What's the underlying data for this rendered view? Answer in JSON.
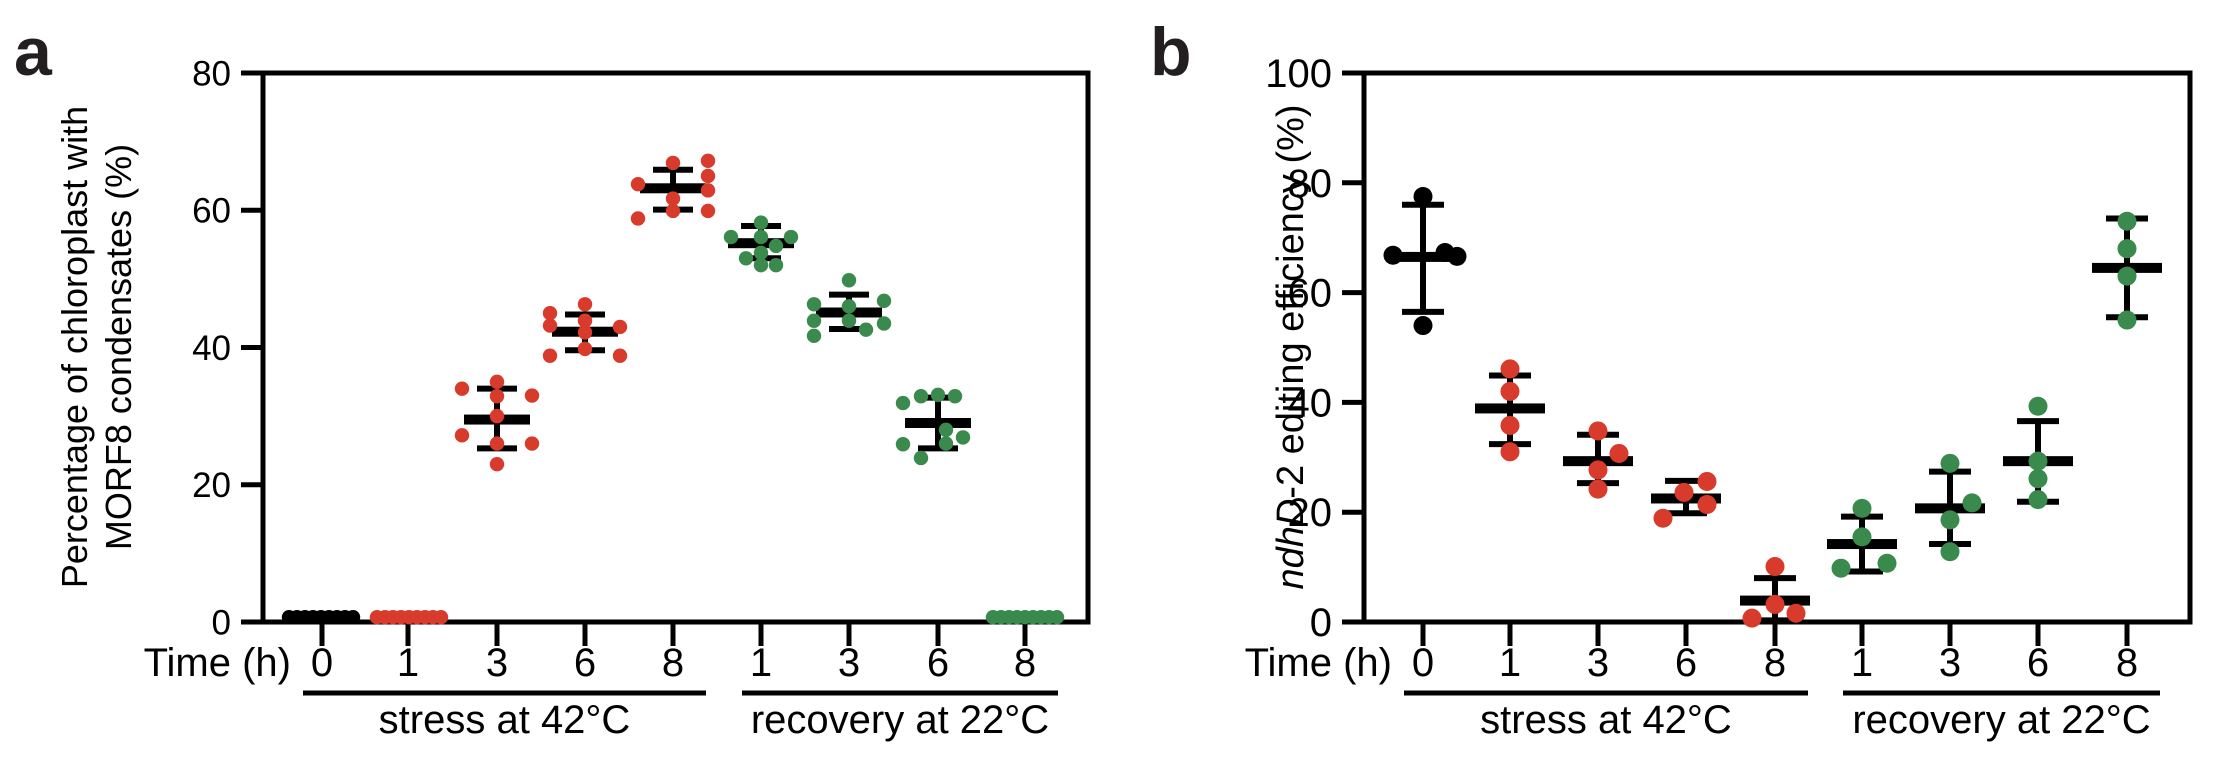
{
  "figure_colors": {
    "stress": "#d83a2b",
    "recovery": "#3a8a4d",
    "baseline": "#000000",
    "axis": "#000000"
  },
  "chart_data": [
    {
      "type": "scatter",
      "panel_label": "a",
      "title": "",
      "ylabel_lines": [
        "Percentage of chloroplast with",
        "MORF8 condensates (%)"
      ],
      "xlabel": "Time (h)",
      "ylim": [
        0,
        80
      ],
      "yticks": [
        0,
        20,
        40,
        60,
        80
      ],
      "grid": false,
      "categories": [
        "0",
        "1",
        "3",
        "6",
        "8",
        "1",
        "3",
        "6",
        "8"
      ],
      "groups": [
        {
          "label": "stress at 42°C",
          "from_index": 0,
          "to_index": 4
        },
        {
          "label": "recovery at 22°C",
          "from_index": 5,
          "to_index": 8
        }
      ],
      "series_colors": {
        "baseline": "#000000",
        "stress": "#d83a2b",
        "recovery": "#3a8a4d"
      },
      "clusters": [
        {
          "time": "0",
          "series": "baseline",
          "mean": 0.7,
          "sd": null,
          "points": [
            [
              0.7,
              -33
            ],
            [
              0.7,
              -25
            ],
            [
              0.7,
              -17
            ],
            [
              0.7,
              -9
            ],
            [
              0.7,
              -1
            ],
            [
              0.7,
              7
            ],
            [
              0.7,
              15
            ],
            [
              0.7,
              23
            ],
            [
              0.7,
              31
            ]
          ]
        },
        {
          "time": "1",
          "series": "stress",
          "mean": 0.7,
          "sd": null,
          "points": [
            [
              0.7,
              -31
            ],
            [
              0.7,
              -23
            ],
            [
              0.7,
              -15
            ],
            [
              0.7,
              -7
            ],
            [
              0.7,
              1
            ],
            [
              0.7,
              9
            ],
            [
              0.7,
              17
            ],
            [
              0.7,
              25
            ],
            [
              0.7,
              33
            ]
          ]
        },
        {
          "time": "3",
          "series": "stress",
          "mean": 29.5,
          "sd": [
            25.3,
            34.0
          ],
          "points": [
            [
              35,
              0
            ],
            [
              34,
              -35
            ],
            [
              33,
              35
            ],
            [
              32.9,
              0
            ],
            [
              30,
              0
            ],
            [
              27.2,
              -35
            ],
            [
              26,
              0
            ],
            [
              26,
              35
            ],
            [
              23,
              0
            ]
          ]
        },
        {
          "time": "6",
          "series": "stress",
          "mean": 42.3,
          "sd": [
            39.6,
            44.8
          ],
          "points": [
            [
              46.3,
              0
            ],
            [
              45,
              -35
            ],
            [
              43.9,
              0
            ],
            [
              43.2,
              -35
            ],
            [
              43,
              35
            ],
            [
              42.2,
              0
            ],
            [
              39.8,
              0
            ],
            [
              38.8,
              -35
            ],
            [
              38.8,
              35
            ]
          ]
        },
        {
          "time": "8",
          "series": "stress",
          "mean": 63.2,
          "sd": [
            60.1,
            65.9
          ],
          "points": [
            [
              67.2,
              35
            ],
            [
              66.9,
              0
            ],
            [
              65,
              35
            ],
            [
              63.8,
              -35
            ],
            [
              62.9,
              35
            ],
            [
              61.7,
              0
            ],
            [
              59.9,
              0
            ],
            [
              59.9,
              35
            ],
            [
              58.8,
              -35
            ]
          ]
        },
        {
          "time": "1",
          "series": "recovery",
          "mean": 55.2,
          "sd": [
            53.0,
            57.7
          ],
          "points": [
            [
              58.2,
              0
            ],
            [
              56.1,
              -30
            ],
            [
              56.1,
              0
            ],
            [
              56.1,
              30
            ],
            [
              54.8,
              15
            ],
            [
              53.8,
              0
            ],
            [
              53,
              -15
            ],
            [
              52,
              0
            ],
            [
              52,
              15
            ]
          ]
        },
        {
          "time": "3",
          "series": "recovery",
          "mean": 45.1,
          "sd": [
            42.7,
            47.7
          ],
          "points": [
            [
              49.8,
              0
            ],
            [
              46.8,
              35
            ],
            [
              46.3,
              -35
            ],
            [
              46,
              0
            ],
            [
              43.9,
              -35
            ],
            [
              43.9,
              0
            ],
            [
              43.5,
              35
            ],
            [
              42.6,
              17
            ],
            [
              41.7,
              -35
            ]
          ]
        },
        {
          "time": "6",
          "series": "recovery",
          "mean": 29.0,
          "sd": [
            25.3,
            32.7
          ],
          "points": [
            [
              33.1,
              0
            ],
            [
              32.9,
              -17
            ],
            [
              32.9,
              17
            ],
            [
              31.9,
              -35
            ],
            [
              28,
              8
            ],
            [
              26.9,
              25
            ],
            [
              26,
              8
            ],
            [
              25.9,
              -35
            ],
            [
              23.9,
              -17
            ]
          ]
        },
        {
          "time": "8",
          "series": "recovery",
          "mean": 0.7,
          "sd": null,
          "points": [
            [
              0.7,
              -32
            ],
            [
              0.7,
              -24
            ],
            [
              0.7,
              -16
            ],
            [
              0.7,
              -8
            ],
            [
              0.7,
              0
            ],
            [
              0.7,
              8
            ],
            [
              0.7,
              16
            ],
            [
              0.7,
              24
            ],
            [
              0.7,
              32
            ]
          ]
        }
      ]
    },
    {
      "type": "scatter",
      "panel_label": "b",
      "title": "",
      "ylabel_italic": "ndhD",
      "ylabel_rest": "-2 editing efficiency (%)",
      "xlabel": "Time (h)",
      "ylim": [
        0,
        100
      ],
      "yticks": [
        0,
        20,
        40,
        60,
        80,
        100
      ],
      "grid": false,
      "categories": [
        "0",
        "1",
        "3",
        "6",
        "8",
        "1",
        "3",
        "6",
        "8"
      ],
      "groups": [
        {
          "label": "stress at 42°C",
          "from_index": 0,
          "to_index": 4
        },
        {
          "label": "recovery at 22°C",
          "from_index": 5,
          "to_index": 8
        }
      ],
      "series_colors": {
        "baseline": "#000000",
        "stress": "#d83a2b",
        "recovery": "#3a8a4d"
      },
      "clusters": [
        {
          "time": "0",
          "series": "baseline",
          "mean": 66.5,
          "sd": [
            56.5,
            76.0
          ],
          "points": [
            [
              77.5,
              0
            ],
            [
              67.3,
              22
            ],
            [
              66.8,
              -30
            ],
            [
              66.6,
              34
            ],
            [
              54,
              0
            ]
          ]
        },
        {
          "time": "1",
          "series": "stress",
          "mean": 38.9,
          "sd": [
            32.4,
            44.9
          ],
          "points": [
            [
              46.1,
              0
            ],
            [
              42,
              0
            ],
            [
              35.8,
              0
            ],
            [
              31,
              0
            ]
          ]
        },
        {
          "time": "3",
          "series": "stress",
          "mean": 29.3,
          "sd": [
            25.3,
            34.1
          ],
          "points": [
            [
              34.8,
              0
            ],
            [
              30.7,
              21
            ],
            [
              27.7,
              0
            ],
            [
              24.2,
              0
            ]
          ]
        },
        {
          "time": "6",
          "series": "stress",
          "mean": 22.5,
          "sd": [
            19.8,
            25.7
          ],
          "points": [
            [
              25.6,
              21
            ],
            [
              23.6,
              -2
            ],
            [
              21.4,
              21
            ],
            [
              18.9,
              -23
            ]
          ]
        },
        {
          "time": "8",
          "series": "stress",
          "mean": 3.9,
          "sd": [
            0.3,
            8.0
          ],
          "points": [
            [
              10.1,
              0
            ],
            [
              3.2,
              0
            ],
            [
              1.6,
              21
            ],
            [
              0.7,
              -23
            ]
          ]
        },
        {
          "time": "1",
          "series": "recovery",
          "mean": 14.2,
          "sd": [
            9.2,
            19.2
          ],
          "points": [
            [
              20.7,
              0
            ],
            [
              15.5,
              0
            ],
            [
              10.7,
              25
            ],
            [
              9.8,
              -21
            ]
          ]
        },
        {
          "time": "3",
          "series": "recovery",
          "mean": 20.7,
          "sd": [
            14.2,
            27.4
          ],
          "points": [
            [
              28.9,
              0
            ],
            [
              21.7,
              22
            ],
            [
              18.6,
              0
            ],
            [
              12.8,
              0
            ]
          ]
        },
        {
          "time": "6",
          "series": "recovery",
          "mean": 29.3,
          "sd": [
            21.9,
            36.6
          ],
          "points": [
            [
              39.3,
              0
            ],
            [
              29.3,
              0
            ],
            [
              26.1,
              0
            ],
            [
              22.3,
              0
            ]
          ]
        },
        {
          "time": "8",
          "series": "recovery",
          "mean": 64.5,
          "sd": [
            55.5,
            73.5
          ],
          "points": [
            [
              73,
              0
            ],
            [
              68,
              0
            ],
            [
              63,
              0
            ],
            [
              55,
              0
            ]
          ]
        }
      ]
    }
  ]
}
